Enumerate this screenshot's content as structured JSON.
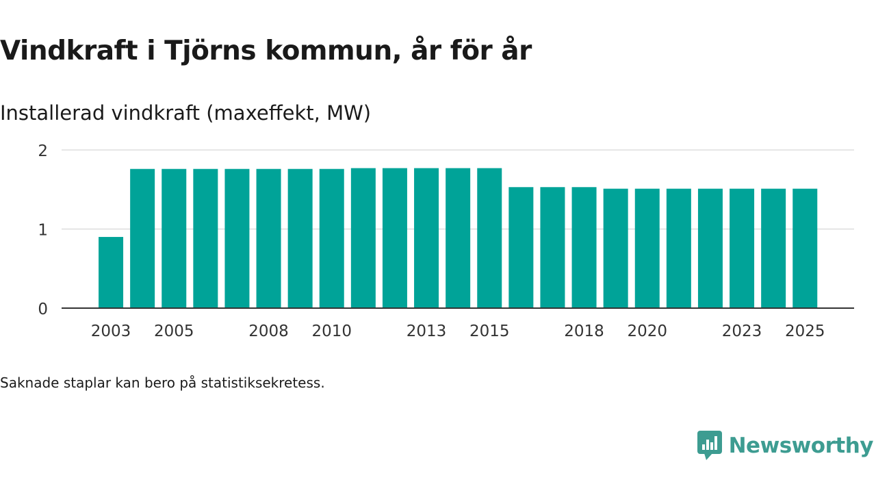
{
  "title": "Vindkraft i Tjörns kommun, år för år",
  "chart_data": {
    "type": "bar",
    "title": "Installerad vindkraft (maxeffekt, MW)",
    "xlabel": "",
    "ylabel": "",
    "categories": [
      "2003",
      "2004",
      "2005",
      "2006",
      "2007",
      "2008",
      "2009",
      "2010",
      "2011",
      "2012",
      "2013",
      "2014",
      "2015",
      "2016",
      "2017",
      "2018",
      "2019",
      "2020",
      "2021",
      "2022",
      "2023",
      "2024",
      "2025"
    ],
    "values": [
      0.9,
      1.76,
      1.76,
      1.76,
      1.76,
      1.76,
      1.76,
      1.76,
      1.77,
      1.77,
      1.77,
      1.77,
      1.77,
      1.53,
      1.53,
      1.53,
      1.51,
      1.51,
      1.51,
      1.51,
      1.51,
      1.51,
      1.51
    ],
    "xtick_labels": [
      "2003",
      "2005",
      "2008",
      "2010",
      "2013",
      "2015",
      "2018",
      "2020",
      "2023",
      "2025"
    ],
    "yticks": [
      0,
      1,
      2
    ],
    "ylim": [
      0,
      2
    ],
    "grid": true,
    "bar_color": "#00a398"
  },
  "footnote": "Saknade staplar kan bero på statistiksekretess.",
  "brand": {
    "name": "Newsworthy",
    "color": "#3d9c91"
  }
}
